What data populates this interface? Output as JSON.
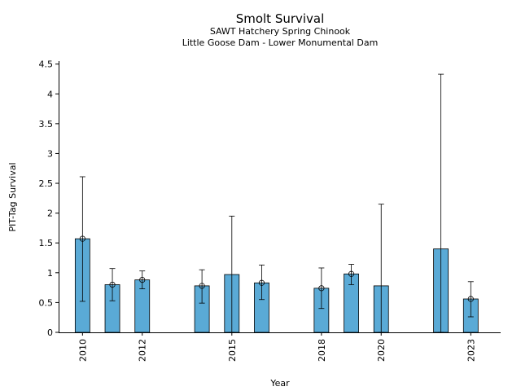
{
  "chart_data": {
    "type": "bar",
    "title": "Smolt Survival",
    "subtitle_1": "SAWT Hatchery Spring Chinook",
    "subtitle_2": "Little Goose Dam - Lower Monumental Dam",
    "xlabel": "Year",
    "ylabel": "PIT-Tag Survival",
    "bar_color": "#5aaad6",
    "xlim": [
      2009.2,
      2024.0
    ],
    "ylim": [
      0,
      4.55
    ],
    "y_ticks": [
      0,
      0.5,
      1,
      1.5,
      2,
      2.5,
      3,
      3.5,
      4,
      4.5
    ],
    "y_tick_labels": [
      "0",
      "0.5",
      "1",
      "1.5",
      "2",
      "2.5",
      "3",
      "3.5",
      "4",
      "4.5"
    ],
    "x_ticks": [
      2010,
      2012,
      2015,
      2018,
      2020,
      2023
    ],
    "x_tick_labels": [
      "2010",
      "2012",
      "2015",
      "2018",
      "2020",
      "2023"
    ],
    "grid": false,
    "legend": "none",
    "bars": [
      {
        "year": 2010,
        "value": 1.57,
        "err_low": 0.52,
        "err_high": 2.61,
        "point": 1.57
      },
      {
        "year": 2011,
        "value": 0.8,
        "err_low": 0.53,
        "err_high": 1.07,
        "point": 0.8
      },
      {
        "year": 2012,
        "value": 0.88,
        "err_low": 0.73,
        "err_high": 1.03,
        "point": 0.88
      },
      {
        "year": 2014,
        "value": 0.78,
        "err_low": 0.49,
        "err_high": 1.05,
        "point": 0.78
      },
      {
        "year": 2015,
        "value": 0.97,
        "err_low": 0.0,
        "err_high": 1.95,
        "point": null
      },
      {
        "year": 2016,
        "value": 0.83,
        "err_low": 0.55,
        "err_high": 1.13,
        "point": 0.83
      },
      {
        "year": 2018,
        "value": 0.74,
        "err_low": 0.4,
        "err_high": 1.08,
        "point": 0.74
      },
      {
        "year": 2019,
        "value": 0.98,
        "err_low": 0.8,
        "err_high": 1.14,
        "point": 0.98
      },
      {
        "year": 2020,
        "value": 0.78,
        "err_low": 0.0,
        "err_high": 2.15,
        "point": null
      },
      {
        "year": 2022,
        "value": 1.4,
        "err_low": 0.0,
        "err_high": 4.33,
        "point": null
      },
      {
        "year": 2023,
        "value": 0.56,
        "err_low": 0.26,
        "err_high": 0.85,
        "point": 0.56
      }
    ]
  }
}
